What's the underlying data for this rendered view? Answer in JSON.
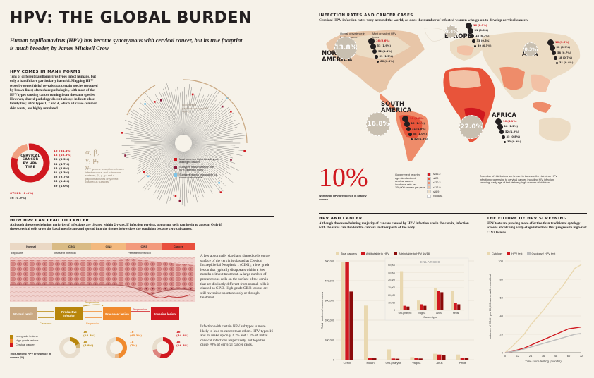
{
  "header": {
    "title": "HPV: THE GLOBAL BURDEN",
    "standfirst": "Human papillomavirus (HPV) has become synonymous with cervical cancer, but its true footprint is much broader, by James Mitchell Crow"
  },
  "forms": {
    "heading": "HPV COMES IN MANY FORMS",
    "body": "Tens of different papillomavirus types infect humans, but only a handful are particularly harmful. Mapping HPV types by genes (right) reveals that certain species (grouped by brown lines) often share pathologies, with most of the HPV types causing cancer coming from the same species. However, shared pathology doesn't always indicate close family ties; HPV types 1, 2 and 4, which all cause common skin warts, are highly unrelated.",
    "donut_label": "CERVICAL CANCER BY HPV TYPE",
    "donut_types": [
      {
        "type": "16",
        "pct": "54.4%"
      },
      {
        "type": "18",
        "pct": "16.5%"
      },
      {
        "type": "58",
        "pct": "3.3%"
      },
      {
        "type": "33",
        "pct": "4.7%"
      },
      {
        "type": "45",
        "pct": "4.8%"
      },
      {
        "type": "31",
        "pct": "3.3%"
      },
      {
        "type": "52",
        "pct": "2.7%"
      },
      {
        "type": "35",
        "pct": "1.4%"
      },
      {
        "type": "39",
        "pct": "1.0%"
      }
    ],
    "donut_other": "OTHER (8.4%)",
    "donut_last": "56 (0.9%)",
    "greek": "α, β, γ, μ, ν",
    "genera_note": "HPV genera: α-papillomaviruses infect mucosal and cutaneous surfaces, β-, γ-, μ- and ν-papillomaviruses only infect cutaneous surfaces",
    "nonhuman_label": "Non-human papillomaviruses (>80 types)",
    "tree_legend": [
      {
        "label": "Most common high-risk subtypes leading to cancer",
        "color": "#d0181f"
      },
      {
        "label": "Subtypes responsible for over 90% of genital warts",
        "color": "#8a1b3b"
      },
      {
        "label": "Subtypes mainly responsible for common skin warts",
        "color": "#7fc5e8"
      }
    ]
  },
  "lead": {
    "heading": "HOW HPV CAN LEAD TO CANCER",
    "intro": "Although the overwhelming majority of infections are cleared within 2 years. If infection persists, abnormal cells can begin to appear. Only if these cervical cells cross the basal membrane and spread into the tissues below does the condition become cervical cancer.",
    "stages": [
      "Normal",
      "CIN1",
      "CIN2",
      "CIN3",
      "Cancer"
    ],
    "phases": [
      "Exposure",
      "Transient infection",
      "Persistent infection"
    ],
    "flow": [
      "Normal cervix",
      "Productive infection",
      "Precancer lesion",
      "Invasive lesion"
    ],
    "flow_labels": {
      "progression_top": "Progression",
      "progression": "Progression",
      "clearance": "Clearance",
      "regression": "Regression"
    },
    "legend": [
      {
        "label": "Low-grade lesions",
        "color": "#b8860b"
      },
      {
        "label": "High-grade lesions",
        "color": "#f08a2e"
      },
      {
        "label": "Cervical cancer",
        "color": "#d0181f"
      }
    ],
    "prevalence_label": "Type-specific HPV prevalence in women (%)",
    "prevalence": [
      {
        "a": "16",
        "av": "(18.5%)",
        "b": "18",
        "bv": "(6.8%)"
      },
      {
        "a": "16",
        "av": "(45.3%)",
        "b": "18",
        "bv": "(7%)"
      },
      {
        "a": "16",
        "av": "(54.4%)",
        "b": "18",
        "bv": "(16.5%)"
      }
    ],
    "col1": "A few abnormally sized and shaped cells on the surface of the cervix is classed as Cervical Intraepithelial Neoplasia 1 (CIN1), a low grade lesion that typically disappears within a few months without treatment. A large number of precancerous cells on the surface of the cervix that are distinctly different from normal cells is classed as CIN3. High-grade CIN3 lesions are still reversible spontaneously or through treatment.",
    "col2": "Infection with certain HPV subtypes is more likely to lead to cancer than others. HPV types 16 and 18 make up only 2.7% and 1.1% of initial cervical infections respectively, but together cause 70% of cervical cancer cases."
  },
  "map": {
    "heading": "INFECTION RATES AND CANCER CASES",
    "subhead": "Cervical HPV infection rates vary around the world, as does the number of infected women who go on to develop cervical cancer.",
    "key_overall": "Overall prevalence in healthy women",
    "key_prevalent": "Most prevalent HPV types",
    "regions": [
      {
        "name": "NORTH AMERICA",
        "rate": "13.8%",
        "types": [
          "16 (2.6%)",
          "53 (1.9%)",
          "52 (1.4%)",
          "51 (1.3%)",
          "66 (0.8%)"
        ]
      },
      {
        "name": "EUROPE",
        "rate": "8.4%",
        "types": [
          "16 (2.3%)",
          "31 (0.8%)",
          "18 (0.7%)",
          "33 (0.5%)",
          "39 (0.5%)"
        ]
      },
      {
        "name": "ASIA",
        "rate": "8.3%",
        "types": [
          "16 (1.6%)",
          "52 (0.9%)",
          "58 (0.7%)",
          "18 (0.7%)",
          "31 (0.4%)"
        ]
      },
      {
        "name": "SOUTH AMERICA",
        "rate": "16.8%",
        "types": [
          "16 (3.6%)",
          "18 (1.1%)",
          "31 (1.0%)",
          "58 (1.0%)",
          "52 (1.3%)"
        ]
      },
      {
        "name": "AFRICA",
        "rate": "22.0%",
        "types": [
          "16 (4.1%)",
          "18 (1.2%)",
          "52 (1.2%)",
          "35 (0.8%)",
          "33 (0.9%)"
        ]
      }
    ],
    "big_rate": "10%",
    "big_rate_label": "Worldwide HPV prevalence in healthy women",
    "incidence_title": "Government reported age-standardized cervical cancer incidence rate per 100,000 women per year",
    "incidence": [
      {
        "label": "≤ 56.2",
        "color": "#d0181f"
      },
      {
        "label": "≤ 20",
        "color": "#e8543a"
      },
      {
        "label": "≤ 20.2",
        "color": "#ee8c6a"
      },
      {
        "label": "≤ 12.9",
        "color": "#f2c1a5"
      },
      {
        "label": "≤ 6.9",
        "color": "#ecdcc4"
      },
      {
        "label": "No data",
        "color": "#ffffff"
      }
    ],
    "risk_note": "A number of risk factors are known to increase the risk of an HPV infection progressing to cervical cancer, including HIV infection, smoking, early age of first delivery, high number of children."
  },
  "cancer": {
    "heading": "HPV AND CANCER",
    "intro": "Although the overwhelming majority of cancers caused by HPV infection are in the cervix, infection with the virus can also lead to cancers in other parts of the body",
    "legend": [
      {
        "label": "Total cancers",
        "color": "#e9d8b0"
      },
      {
        "label": "Attributable to HPV",
        "color": "#d0181f"
      },
      {
        "label": "Attributable to HPV 16/18",
        "color": "#8b0a0a"
      }
    ],
    "enlarged": "ENLARGED",
    "inset_xlabel": "Cancer type",
    "ylabel": "Total number of cancer cases",
    "xlabel": ""
  },
  "screening": {
    "heading": "THE FUTURE OF HPV SCREENING",
    "intro": "HPV tests are proving more effective than traditional cytology screens at catching early-stage infections that progress to high-risk CIN3 lesions",
    "legend": [
      {
        "label": "Cytology",
        "color": "#e9d8b0"
      },
      {
        "label": "HPV test",
        "color": "#d0181f"
      },
      {
        "label": "Cytology / HPV test",
        "color": "#bbbbbb"
      }
    ],
    "ylabel": "Incidence of CIN3+ per 10,000 women with normal test",
    "xlabel": "Time since testing (months)"
  },
  "chart_data": [
    {
      "type": "bar",
      "title": "HPV AND CANCER",
      "categories": [
        "Cervix",
        "Mouth",
        "Oro-pharynx",
        "Vagina",
        "Anus",
        "Penis"
      ],
      "ylabel": "Total number of cancer cases",
      "ylim": [
        0,
        500000
      ],
      "yticks": [
        0,
        100000,
        200000,
        300000,
        400000,
        500000
      ],
      "series": [
        {
          "name": "Total cancers",
          "values": [
            493000,
            274000,
            52000,
            13000,
            30000,
            26000
          ]
        },
        {
          "name": "Attributable to HPV",
          "values": [
            493000,
            8000,
            6000,
            8000,
            26000,
            10000
          ]
        },
        {
          "name": "Attributable to HPV 16/18",
          "values": [
            345000,
            7000,
            5000,
            6000,
            24000,
            8000
          ]
        }
      ]
    },
    {
      "type": "bar",
      "title": "ENLARGED",
      "categories": [
        "Oro-pharynx",
        "Vagina",
        "Anus",
        "Penis"
      ],
      "xlabel": "Cancer type",
      "ylim": [
        0,
        60000
      ],
      "yticks": [
        0,
        10000,
        20000,
        30000,
        40000,
        50000,
        60000
      ],
      "series": [
        {
          "name": "Total cancers",
          "values": [
            52000,
            13000,
            30000,
            26000
          ]
        },
        {
          "name": "Attributable to HPV",
          "values": [
            6000,
            8000,
            26000,
            10000
          ]
        },
        {
          "name": "Attributable to HPV 16/18",
          "values": [
            5000,
            6000,
            24000,
            8000
          ]
        }
      ]
    },
    {
      "type": "line",
      "title": "THE FUTURE OF HPV SCREENING",
      "x": [
        0,
        6,
        12,
        18,
        24,
        30,
        36,
        42,
        48,
        54,
        60,
        66,
        72
      ],
      "xticks": [
        0,
        12,
        24,
        36,
        48,
        60,
        72
      ],
      "xlabel": "Time since testing (months)",
      "ylabel": "Incidence of CIN3+ per 10,000 women with normal test",
      "ylim": [
        0,
        100
      ],
      "yticks": [
        0,
        20,
        40,
        60,
        80,
        100
      ],
      "series": [
        {
          "name": "Cytology",
          "values": [
            0,
            6,
            13,
            20,
            30,
            38,
            46,
            55,
            64,
            72,
            82,
            92,
            96
          ]
        },
        {
          "name": "HPV test",
          "values": [
            0,
            1,
            3,
            5,
            8,
            11,
            14,
            17,
            20,
            23,
            26,
            27,
            28
          ]
        },
        {
          "name": "Cytology / HPV test",
          "values": [
            0,
            1,
            2,
            4,
            6,
            8,
            10,
            12,
            14,
            16,
            18,
            20,
            21
          ]
        }
      ]
    }
  ]
}
